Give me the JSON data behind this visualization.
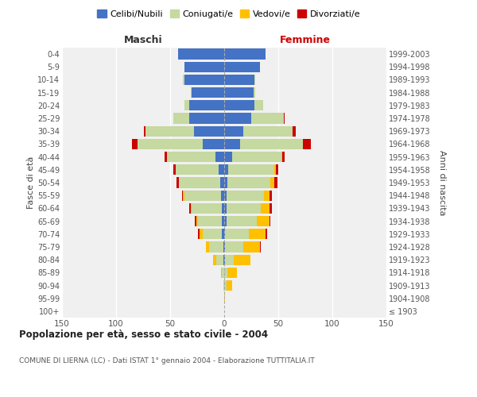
{
  "age_groups": [
    "100+",
    "95-99",
    "90-94",
    "85-89",
    "80-84",
    "75-79",
    "70-74",
    "65-69",
    "60-64",
    "55-59",
    "50-54",
    "45-49",
    "40-44",
    "35-39",
    "30-34",
    "25-29",
    "20-24",
    "15-19",
    "10-14",
    "5-9",
    "0-4"
  ],
  "birth_years": [
    "≤ 1903",
    "1904-1908",
    "1909-1913",
    "1914-1918",
    "1919-1923",
    "1924-1928",
    "1929-1933",
    "1934-1938",
    "1939-1943",
    "1944-1948",
    "1949-1953",
    "1954-1958",
    "1959-1963",
    "1964-1968",
    "1969-1973",
    "1974-1978",
    "1979-1983",
    "1984-1988",
    "1989-1993",
    "1994-1998",
    "1999-2003"
  ],
  "male": {
    "celibi": [
      0,
      0,
      0,
      0,
      1,
      1,
      2,
      2,
      2,
      3,
      4,
      5,
      8,
      20,
      28,
      32,
      32,
      30,
      37,
      37,
      43
    ],
    "coniugati": [
      0,
      0,
      1,
      2,
      6,
      13,
      18,
      22,
      28,
      34,
      38,
      40,
      45,
      60,
      45,
      15,
      5,
      1,
      1,
      0,
      0
    ],
    "vedovi": [
      0,
      0,
      0,
      1,
      3,
      3,
      3,
      2,
      1,
      1,
      0,
      0,
      0,
      0,
      0,
      0,
      0,
      0,
      0,
      0,
      0
    ],
    "divorziati": [
      0,
      0,
      0,
      0,
      0,
      0,
      1,
      1,
      1,
      1,
      2,
      2,
      2,
      5,
      1,
      0,
      0,
      0,
      0,
      0,
      0
    ]
  },
  "female": {
    "nubili": [
      0,
      0,
      0,
      0,
      1,
      1,
      1,
      2,
      2,
      2,
      3,
      4,
      7,
      15,
      18,
      25,
      28,
      27,
      28,
      33,
      38
    ],
    "coniugate": [
      0,
      0,
      2,
      3,
      8,
      17,
      22,
      28,
      32,
      35,
      40,
      42,
      46,
      58,
      45,
      30,
      8,
      2,
      1,
      0,
      0
    ],
    "vedove": [
      0,
      1,
      5,
      9,
      15,
      15,
      15,
      12,
      8,
      5,
      3,
      2,
      1,
      0,
      0,
      0,
      0,
      0,
      0,
      0,
      0
    ],
    "divorziate": [
      0,
      0,
      0,
      0,
      0,
      1,
      2,
      1,
      2,
      2,
      3,
      2,
      2,
      7,
      3,
      1,
      0,
      0,
      0,
      0,
      0
    ]
  },
  "colors": {
    "celibi": "#4472c4",
    "coniugati": "#c5d9a0",
    "vedovi": "#ffc000",
    "divorziati": "#cc0000"
  },
  "xlim": 150,
  "title": "Popolazione per età, sesso e stato civile - 2004",
  "subtitle": "COMUNE DI LIERNA (LC) - Dati ISTAT 1° gennaio 2004 - Elaborazione TUTTITALIA.IT",
  "ylabel_left": "Fasce di età",
  "ylabel_right": "Anni di nascita",
  "xlabel_left": "Maschi",
  "xlabel_right": "Femmine",
  "bg_color": "#ffffff",
  "plot_bg_color": "#f0f0f0"
}
